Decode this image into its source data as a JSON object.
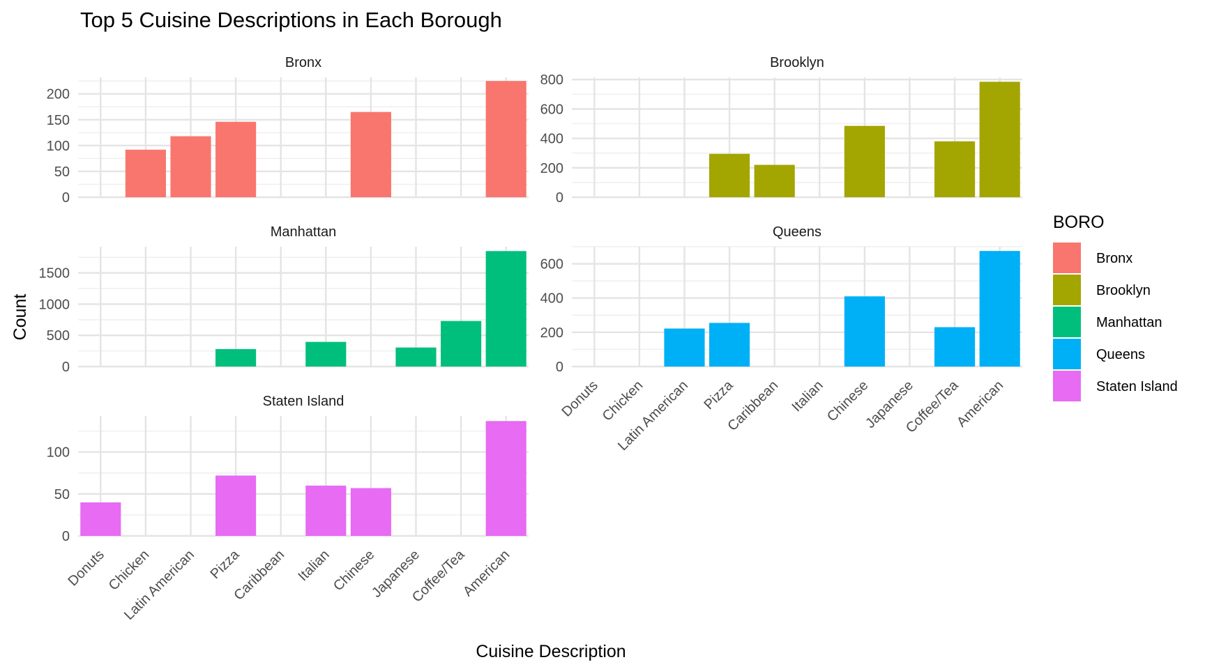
{
  "chart_data": {
    "type": "bar",
    "title": "Top 5 Cuisine Descriptions in Each Borough",
    "xlabel": "Cuisine Description",
    "ylabel": "Count",
    "categories": [
      "Donuts",
      "Chicken",
      "Latin American",
      "Pizza",
      "Caribbean",
      "Italian",
      "Chinese",
      "Japanese",
      "Coffee/Tea",
      "American"
    ],
    "legend": {
      "title": "BORO",
      "position": "right",
      "entries": [
        "Bronx",
        "Brooklyn",
        "Manhattan",
        "Queens",
        "Staten Island"
      ]
    },
    "grid": true,
    "facets": [
      {
        "name": "Bronx",
        "color": "#F8766D",
        "ylim": [
          0,
          232
        ],
        "yticks": [
          0,
          50,
          100,
          150,
          200
        ],
        "values": [
          null,
          92,
          118,
          146,
          null,
          null,
          165,
          null,
          null,
          225
        ]
      },
      {
        "name": "Brooklyn",
        "color": "#A3A500",
        "ylim": [
          0,
          815
        ],
        "yticks": [
          0,
          200,
          400,
          600,
          800
        ],
        "values": [
          null,
          null,
          null,
          295,
          220,
          null,
          485,
          null,
          380,
          785
        ]
      },
      {
        "name": "Manhattan",
        "color": "#00BF7D",
        "ylim": [
          0,
          1920
        ],
        "yticks": [
          0,
          500,
          1000,
          1500
        ],
        "values": [
          null,
          null,
          null,
          280,
          null,
          395,
          null,
          305,
          730,
          1850
        ]
      },
      {
        "name": "Queens",
        "color": "#00B0F6",
        "ylim": [
          0,
          700
        ],
        "yticks": [
          0,
          200,
          400,
          600
        ],
        "values": [
          null,
          null,
          222,
          255,
          null,
          null,
          410,
          null,
          230,
          675
        ]
      },
      {
        "name": "Staten Island",
        "color": "#E76BF3",
        "ylim": [
          0,
          143
        ],
        "yticks": [
          0,
          50,
          100
        ],
        "values": [
          40,
          null,
          null,
          72,
          null,
          60,
          57,
          null,
          null,
          137
        ]
      }
    ]
  }
}
